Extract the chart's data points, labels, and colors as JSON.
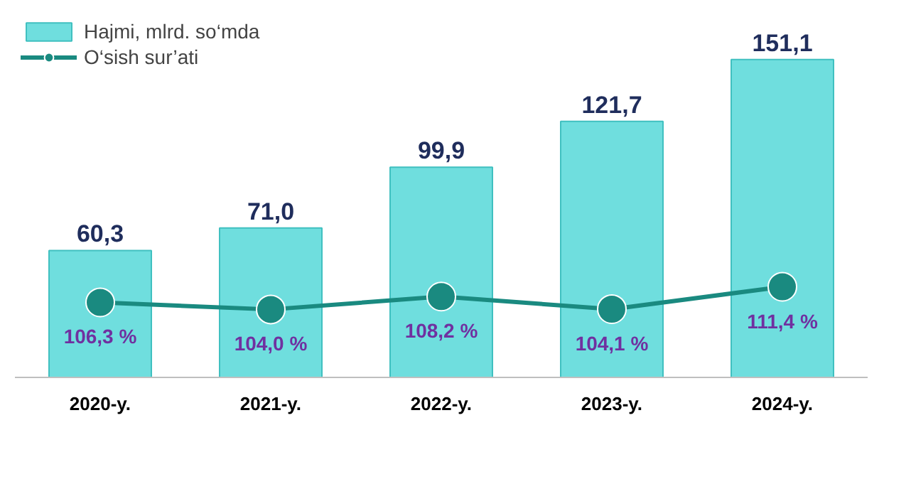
{
  "chart_data": {
    "type": "bar",
    "categories": [
      "2020-y.",
      "2021-y.",
      "2022-y.",
      "2023-y.",
      "2024-y."
    ],
    "series": [
      {
        "name": "Hajmi, mlrd. so‘mda",
        "color": "#6fdede",
        "values": [
          60.3,
          71.0,
          99.9,
          121.7,
          151.1
        ],
        "value_labels": [
          "60,3",
          "71,0",
          "99,9",
          "121,7",
          "151,1"
        ]
      },
      {
        "name": "O‘sish sur’ati",
        "type": "line",
        "axis": "y2",
        "color": "#1a8a80",
        "values": [
          106.3,
          104.0,
          108.2,
          104.1,
          111.4
        ],
        "value_labels": [
          "106,3 %",
          "104,0 %",
          "108,2 %",
          "104,1 %",
          "111,4 %"
        ]
      }
    ],
    "marker": "circle",
    "line_style": "solid",
    "legend": "top left",
    "tick_labels": "x"
  }
}
